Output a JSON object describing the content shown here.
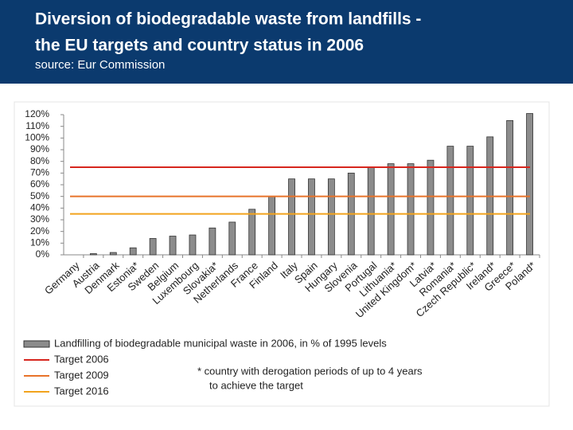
{
  "header": {
    "title_lines": [
      "Diversion of biodegradable waste from landfills -",
      "the EU targets and country status in 2006"
    ],
    "source": "source: Eur Commission"
  },
  "chart_data": {
    "type": "bar",
    "categories": [
      "Germany",
      "Austria",
      "Denmark",
      "Estonia*",
      "Sweden",
      "Belgium",
      "Luxembourg",
      "Slovakia*",
      "Netherlands",
      "France",
      "Finland",
      "Italy",
      "Spain",
      "Hungary",
      "Slovenia",
      "Portugal",
      "Lithuania*",
      "United Kingdom*",
      "Latvia*",
      "Romania*",
      "Czech Republic*",
      "Ireland*",
      "Greece*",
      "Poland*"
    ],
    "series": [
      {
        "name": "Landfilling of biodegradable municipal waste in 2006, in % of 1995 levels",
        "color": "#8c8c8c",
        "values": [
          0,
          1,
          2,
          6,
          14,
          16,
          17,
          23,
          28,
          39,
          50,
          65,
          65,
          65,
          70,
          75,
          78,
          78,
          81,
          93,
          93,
          101,
          115,
          121
        ]
      }
    ],
    "targets": [
      {
        "name": "Target 2006",
        "color": "#d7261e",
        "value": 75
      },
      {
        "name": "Target 2009",
        "color": "#e8732a",
        "value": 50
      },
      {
        "name": "Target 2016",
        "color": "#f2a31d",
        "value": 35
      }
    ],
    "ylim": [
      0,
      120
    ],
    "yticks": [
      {
        "value": 0,
        "label": "0%"
      },
      {
        "value": 10,
        "label": "10%"
      },
      {
        "value": 20,
        "label": "20%"
      },
      {
        "value": 30,
        "label": "30%"
      },
      {
        "value": 40,
        "label": "40%"
      },
      {
        "value": 50,
        "label": "50%"
      },
      {
        "value": 60,
        "label": "60%"
      },
      {
        "value": 70,
        "label": "70%"
      },
      {
        "value": 80,
        "label": "80%"
      },
      {
        "value": 90,
        "label": "90%"
      },
      {
        "value": 100,
        "label": "100%"
      },
      {
        "value": 110,
        "label": "110%"
      },
      {
        "value": 120,
        "label": "120%"
      }
    ],
    "annotation_lines": [
      "* country with derogation periods of up to 4 years",
      "to achieve the target"
    ]
  }
}
